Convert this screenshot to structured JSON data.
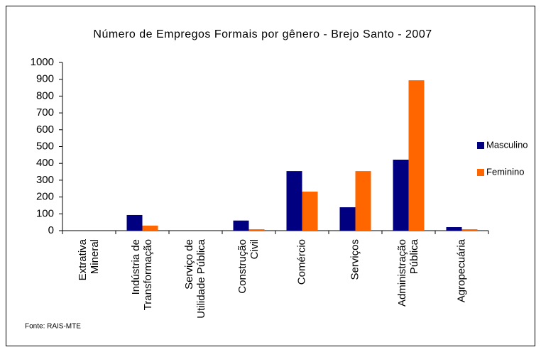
{
  "chart_data": {
    "type": "bar",
    "title": "Número de Empregos Formais por gênero - Brejo Santo - 2007",
    "categories": [
      [
        "Extrativa",
        "Mineral"
      ],
      [
        "Indústria de",
        "Transformação"
      ],
      [
        "Serviço de",
        "Utilidade Pública"
      ],
      [
        "Construção",
        "Civil"
      ],
      [
        "Comércio"
      ],
      [
        "Serviços"
      ],
      [
        "Administração",
        "Pública"
      ],
      [
        "Agropecuária"
      ]
    ],
    "series": [
      {
        "name": "Masculino",
        "color": "#000080",
        "values": [
          0,
          93,
          0,
          60,
          354,
          139,
          422,
          21
        ]
      },
      {
        "name": "Feminino",
        "color": "#ff6600",
        "values": [
          0,
          30,
          0,
          8,
          232,
          354,
          894,
          8
        ]
      }
    ],
    "ylim": [
      0,
      1000
    ],
    "yticks": [
      0,
      100,
      200,
      300,
      400,
      500,
      600,
      700,
      800,
      900,
      1000
    ],
    "grid": false,
    "legend": "right",
    "source": "Fonte: RAIS-MTE"
  }
}
